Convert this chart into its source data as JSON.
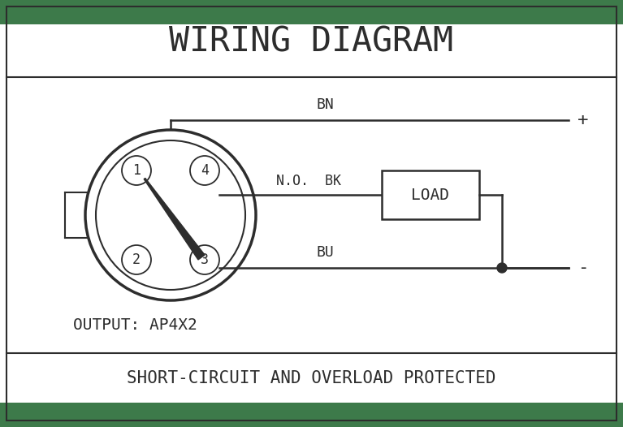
{
  "title": "WIRING DIAGRAM",
  "bottom_text": "SHORT-CIRCUIT AND OVERLOAD PROTECTED",
  "output_label": "OUTPUT: AP4X2",
  "bg_color": "#ffffff",
  "green_color": "#3d7a4a",
  "line_color": "#2d2d2d",
  "bn_label": "BN",
  "bk_label": "N.O.  BK",
  "bu_label": "BU",
  "plus_label": "+",
  "minus_label": "-",
  "load_label": "LOAD",
  "pin_labels": [
    "1",
    "2",
    "3",
    "4"
  ]
}
